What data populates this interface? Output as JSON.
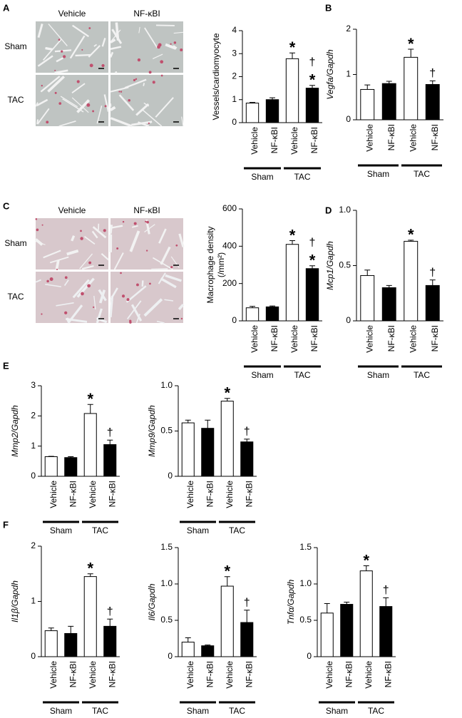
{
  "panel_labels": [
    "A",
    "B",
    "C",
    "D",
    "E",
    "F"
  ],
  "micrographs": [
    {
      "columns": [
        "Vehicle",
        "NF-κBI"
      ],
      "rows": [
        "Sham",
        "TAC"
      ]
    },
    {
      "columns": [
        "Vehicle",
        "NF-κBI"
      ],
      "rows": [
        "Sham",
        "TAC"
      ]
    }
  ],
  "chart_data": [
    {
      "type": "bar",
      "ylabel": "Vessels/cardiomyocyte",
      "ylabel_italic": false,
      "categories": [
        "Vehicle",
        "NF-κBI",
        "Vehicle",
        "NF-κBI"
      ],
      "groups": [
        "Sham",
        "TAC"
      ],
      "values": [
        0.85,
        1.0,
        2.78,
        1.5
      ],
      "errors": [
        0.03,
        0.08,
        0.25,
        0.12
      ],
      "colors": [
        "#ffffff",
        "#000000",
        "#ffffff",
        "#000000"
      ],
      "annotations": [
        [],
        [],
        [
          "*"
        ],
        [
          "†",
          "*"
        ]
      ],
      "ylim": [
        0,
        4
      ],
      "yticks": [
        0,
        1,
        2,
        3,
        4
      ]
    },
    {
      "type": "bar",
      "ylabel": "Vegfa/Gapdh",
      "ylabel_italic": true,
      "categories": [
        "Vehicle",
        "NF-κBI",
        "Vehicle",
        "NF-κBI"
      ],
      "groups": [
        "Sham",
        "TAC"
      ],
      "values": [
        0.67,
        0.8,
        1.38,
        0.78
      ],
      "errors": [
        0.1,
        0.05,
        0.18,
        0.08
      ],
      "colors": [
        "#ffffff",
        "#000000",
        "#ffffff",
        "#000000"
      ],
      "annotations": [
        [],
        [],
        [
          "*"
        ],
        [
          "†"
        ]
      ],
      "ylim": [
        0,
        2
      ],
      "yticks": [
        0,
        1,
        2
      ]
    },
    {
      "type": "bar",
      "ylabel": [
        "Macrophage density",
        "(/mm²)"
      ],
      "ylabel_italic": false,
      "categories": [
        "Vehicle",
        "NF-κBI",
        "Vehicle",
        "NF-κBI"
      ],
      "groups": [
        "Sham",
        "TAC"
      ],
      "values": [
        70,
        75,
        410,
        280
      ],
      "errors": [
        8,
        5,
        20,
        15
      ],
      "colors": [
        "#ffffff",
        "#000000",
        "#ffffff",
        "#000000"
      ],
      "annotations": [
        [],
        [],
        [
          "*"
        ],
        [
          "†",
          "*"
        ]
      ],
      "ylim": [
        0,
        600
      ],
      "yticks": [
        0,
        200,
        400,
        600
      ]
    },
    {
      "type": "bar",
      "ylabel": "Mcp1/Gapdh",
      "ylabel_italic": true,
      "categories": [
        "Vehicle",
        "NF-κBI",
        "Vehicle",
        "NF-κBI"
      ],
      "groups": [
        "Sham",
        "TAC"
      ],
      "values": [
        0.41,
        0.3,
        0.72,
        0.32
      ],
      "errors": [
        0.05,
        0.02,
        0.01,
        0.05
      ],
      "colors": [
        "#ffffff",
        "#000000",
        "#ffffff",
        "#000000"
      ],
      "annotations": [
        [],
        [],
        [
          "*"
        ],
        [
          "†"
        ]
      ],
      "ylim": [
        0,
        1.0
      ],
      "yticks": [
        0,
        0.5,
        {
          "value": 1.0,
          "label": "1.0"
        }
      ]
    },
    {
      "type": "bar",
      "ylabel": "Mmp2/Gapdh",
      "ylabel_italic": true,
      "categories": [
        "Vehicle",
        "NF-κBI",
        "Vehicle",
        "NF-κBI"
      ],
      "groups": [
        "Sham",
        "TAC"
      ],
      "values": [
        0.65,
        0.62,
        2.08,
        1.05
      ],
      "errors": [
        0.01,
        0.03,
        0.3,
        0.15
      ],
      "colors": [
        "#ffffff",
        "#000000",
        "#ffffff",
        "#000000"
      ],
      "annotations": [
        [],
        [],
        [
          "*"
        ],
        [
          "†"
        ]
      ],
      "ylim": [
        0,
        3
      ],
      "yticks": [
        0,
        1,
        2,
        3
      ]
    },
    {
      "type": "bar",
      "ylabel": "Mmp9/Gapdh",
      "ylabel_italic": true,
      "categories": [
        "Vehicle",
        "NF-κBI",
        "Vehicle",
        "NF-κBI"
      ],
      "groups": [
        "Sham",
        "TAC"
      ],
      "values": [
        0.59,
        0.53,
        0.83,
        0.38
      ],
      "errors": [
        0.03,
        0.09,
        0.03,
        0.03
      ],
      "colors": [
        "#ffffff",
        "#000000",
        "#ffffff",
        "#000000"
      ],
      "annotations": [
        [],
        [],
        [
          "*"
        ],
        [
          "†"
        ]
      ],
      "ylim": [
        0,
        1.0
      ],
      "yticks": [
        0,
        0.5,
        {
          "value": 1.0,
          "label": "1.0"
        }
      ]
    },
    {
      "type": "bar",
      "ylabel": "Il1β/Gapdh",
      "ylabel_italic": true,
      "categories": [
        "Vehicle",
        "NF-κBI",
        "Vehicle",
        "NF-κBI"
      ],
      "groups": [
        "Sham",
        "TAC"
      ],
      "values": [
        0.47,
        0.42,
        1.45,
        0.55
      ],
      "errors": [
        0.05,
        0.13,
        0.05,
        0.13
      ],
      "colors": [
        "#ffffff",
        "#000000",
        "#ffffff",
        "#000000"
      ],
      "annotations": [
        [],
        [],
        [
          "*"
        ],
        [
          "†"
        ]
      ],
      "ylim": [
        0,
        2
      ],
      "yticks": [
        0,
        1,
        2
      ]
    },
    {
      "type": "bar",
      "ylabel": "Il6/Gapdh",
      "ylabel_italic": true,
      "categories": [
        "Vehicle",
        "NF-κBI",
        "Vehicle",
        "NF-κBI"
      ],
      "groups": [
        "Sham",
        "TAC"
      ],
      "values": [
        0.2,
        0.15,
        0.97,
        0.47
      ],
      "errors": [
        0.06,
        0.01,
        0.13,
        0.17
      ],
      "colors": [
        "#ffffff",
        "#000000",
        "#ffffff",
        "#000000"
      ],
      "annotations": [
        [],
        [],
        [
          "*"
        ],
        [
          "†"
        ]
      ],
      "ylim": [
        0,
        1.5
      ],
      "yticks": [
        0,
        0.5,
        {
          "value": 1.0,
          "label": "1.0"
        },
        1.5
      ]
    },
    {
      "type": "bar",
      "ylabel": "Tnfα/Gapdh",
      "ylabel_italic": true,
      "categories": [
        "Vehicle",
        "NF-κBI",
        "Vehicle",
        "NF-κBI"
      ],
      "groups": [
        "Sham",
        "TAC"
      ],
      "values": [
        0.6,
        0.72,
        1.18,
        0.69
      ],
      "errors": [
        0.13,
        0.03,
        0.07,
        0.12
      ],
      "colors": [
        "#ffffff",
        "#000000",
        "#ffffff",
        "#000000"
      ],
      "annotations": [
        [],
        [],
        [
          "*"
        ],
        [
          "†"
        ]
      ],
      "ylim": [
        0,
        1.5
      ],
      "yticks": [
        0,
        0.5,
        {
          "value": 1.0,
          "label": "1.0"
        },
        1.5
      ]
    }
  ]
}
